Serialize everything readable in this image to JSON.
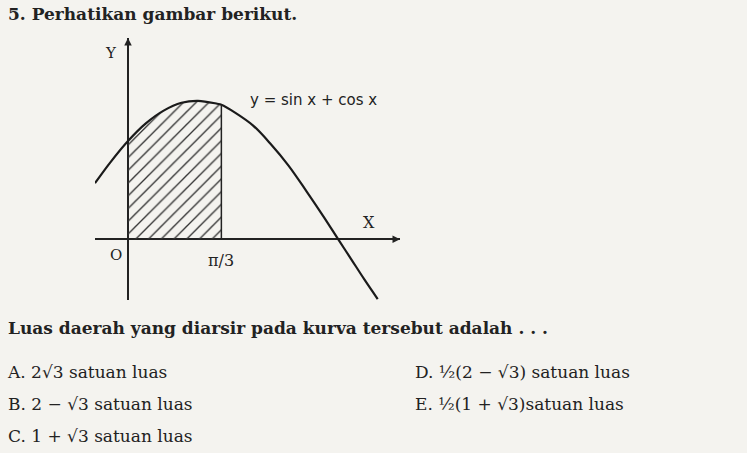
{
  "document": {
    "number": "5.",
    "instruction": "Perhatikan gambar berikut.",
    "question": "Luas daerah yang diarsir pada kurva tersebut adalah . . .",
    "options": [
      {
        "letter": "A.",
        "text": "2√3 satuan luas"
      },
      {
        "letter": "B.",
        "text": "2 − √3 satuan luas"
      },
      {
        "letter": "C.",
        "text": "1 + √3 satuan luas"
      },
      {
        "letter": "D.",
        "text": "½(2 − √3) satuan luas"
      },
      {
        "letter": "E.",
        "text": "½(1 + √3)satuan luas"
      }
    ]
  },
  "chart_data": {
    "type": "line",
    "series": [
      {
        "name": "y = sin x + cos x",
        "color": "#1a1a1a",
        "x": [
          -0.37,
          -0.2,
          0,
          0.2,
          0.4,
          0.6,
          0.785,
          1.0,
          1.047,
          1.2,
          1.4,
          1.6,
          1.8,
          2.0,
          2.2,
          2.356,
          2.5,
          2.65,
          2.8
        ],
        "values": [
          0.57,
          0.78,
          1,
          1.18,
          1.31,
          1.39,
          1.41,
          1.38,
          1.37,
          1.29,
          1.16,
          0.97,
          0.75,
          0.49,
          0.22,
          0,
          -0.2,
          -0.41,
          -0.61
        ]
      }
    ],
    "shaded_region": {
      "x": [
        0,
        1.047
      ],
      "color": "#333333"
    },
    "x_label": "X",
    "y_label": "Y",
    "origin_label": "O",
    "xlim": [
      -0.37,
      3.05
    ],
    "ylim": [
      -0.62,
      2.05
    ],
    "xticks": [
      {
        "value": 1.047,
        "label": "π/3"
      }
    ],
    "yticks": [],
    "tick_labels": "x",
    "grid": false
  }
}
